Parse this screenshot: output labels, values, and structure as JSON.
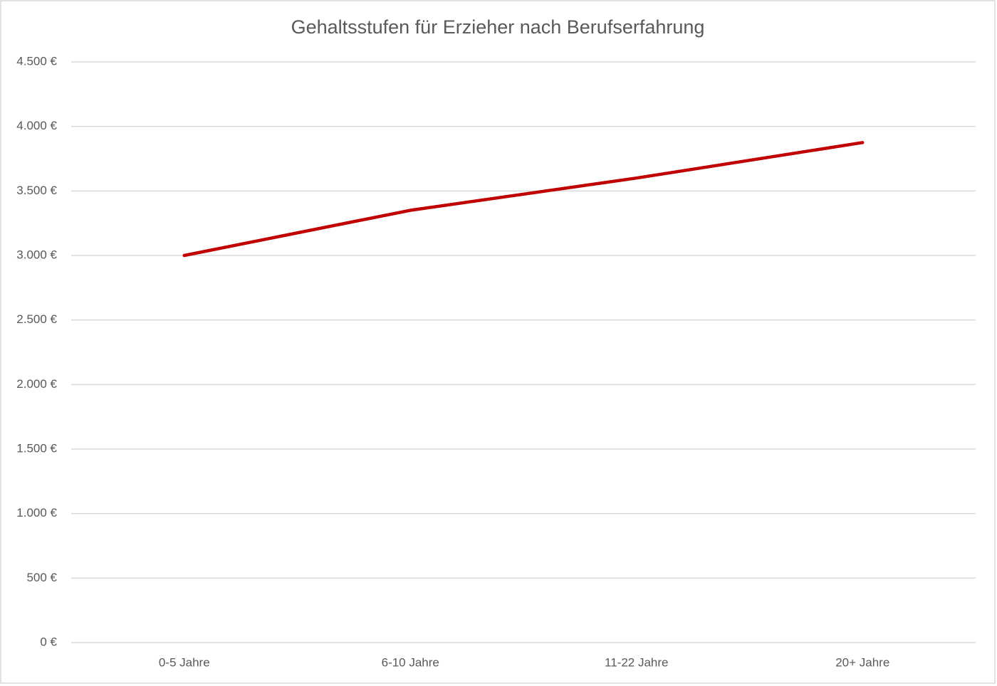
{
  "chart_data": {
    "type": "line",
    "title": "Gehaltsstufen für Erzieher nach Berufserfahrung",
    "categories": [
      "0-5 Jahre",
      "6-10 Jahre",
      "11-22 Jahre",
      "20+ Jahre"
    ],
    "series": [
      {
        "name": "Gehalt",
        "color": "#c00000",
        "values": [
          3000,
          3350,
          3600,
          3875
        ]
      }
    ],
    "ylim": [
      0,
      4500
    ],
    "yticks": [
      {
        "value": 0,
        "label": "0 €"
      },
      {
        "value": 500,
        "label": "500 €"
      },
      {
        "value": 1000,
        "label": "1.000 €"
      },
      {
        "value": 1500,
        "label": "1.500 €"
      },
      {
        "value": 2000,
        "label": "2.000 €"
      },
      {
        "value": 2500,
        "label": "2.500 €"
      },
      {
        "value": 3000,
        "label": "3.000 €"
      },
      {
        "value": 3500,
        "label": "3.500 €"
      },
      {
        "value": 4000,
        "label": "4.000 €"
      },
      {
        "value": 4500,
        "label": "4.500 €"
      }
    ],
    "grid": true,
    "legend": false
  }
}
